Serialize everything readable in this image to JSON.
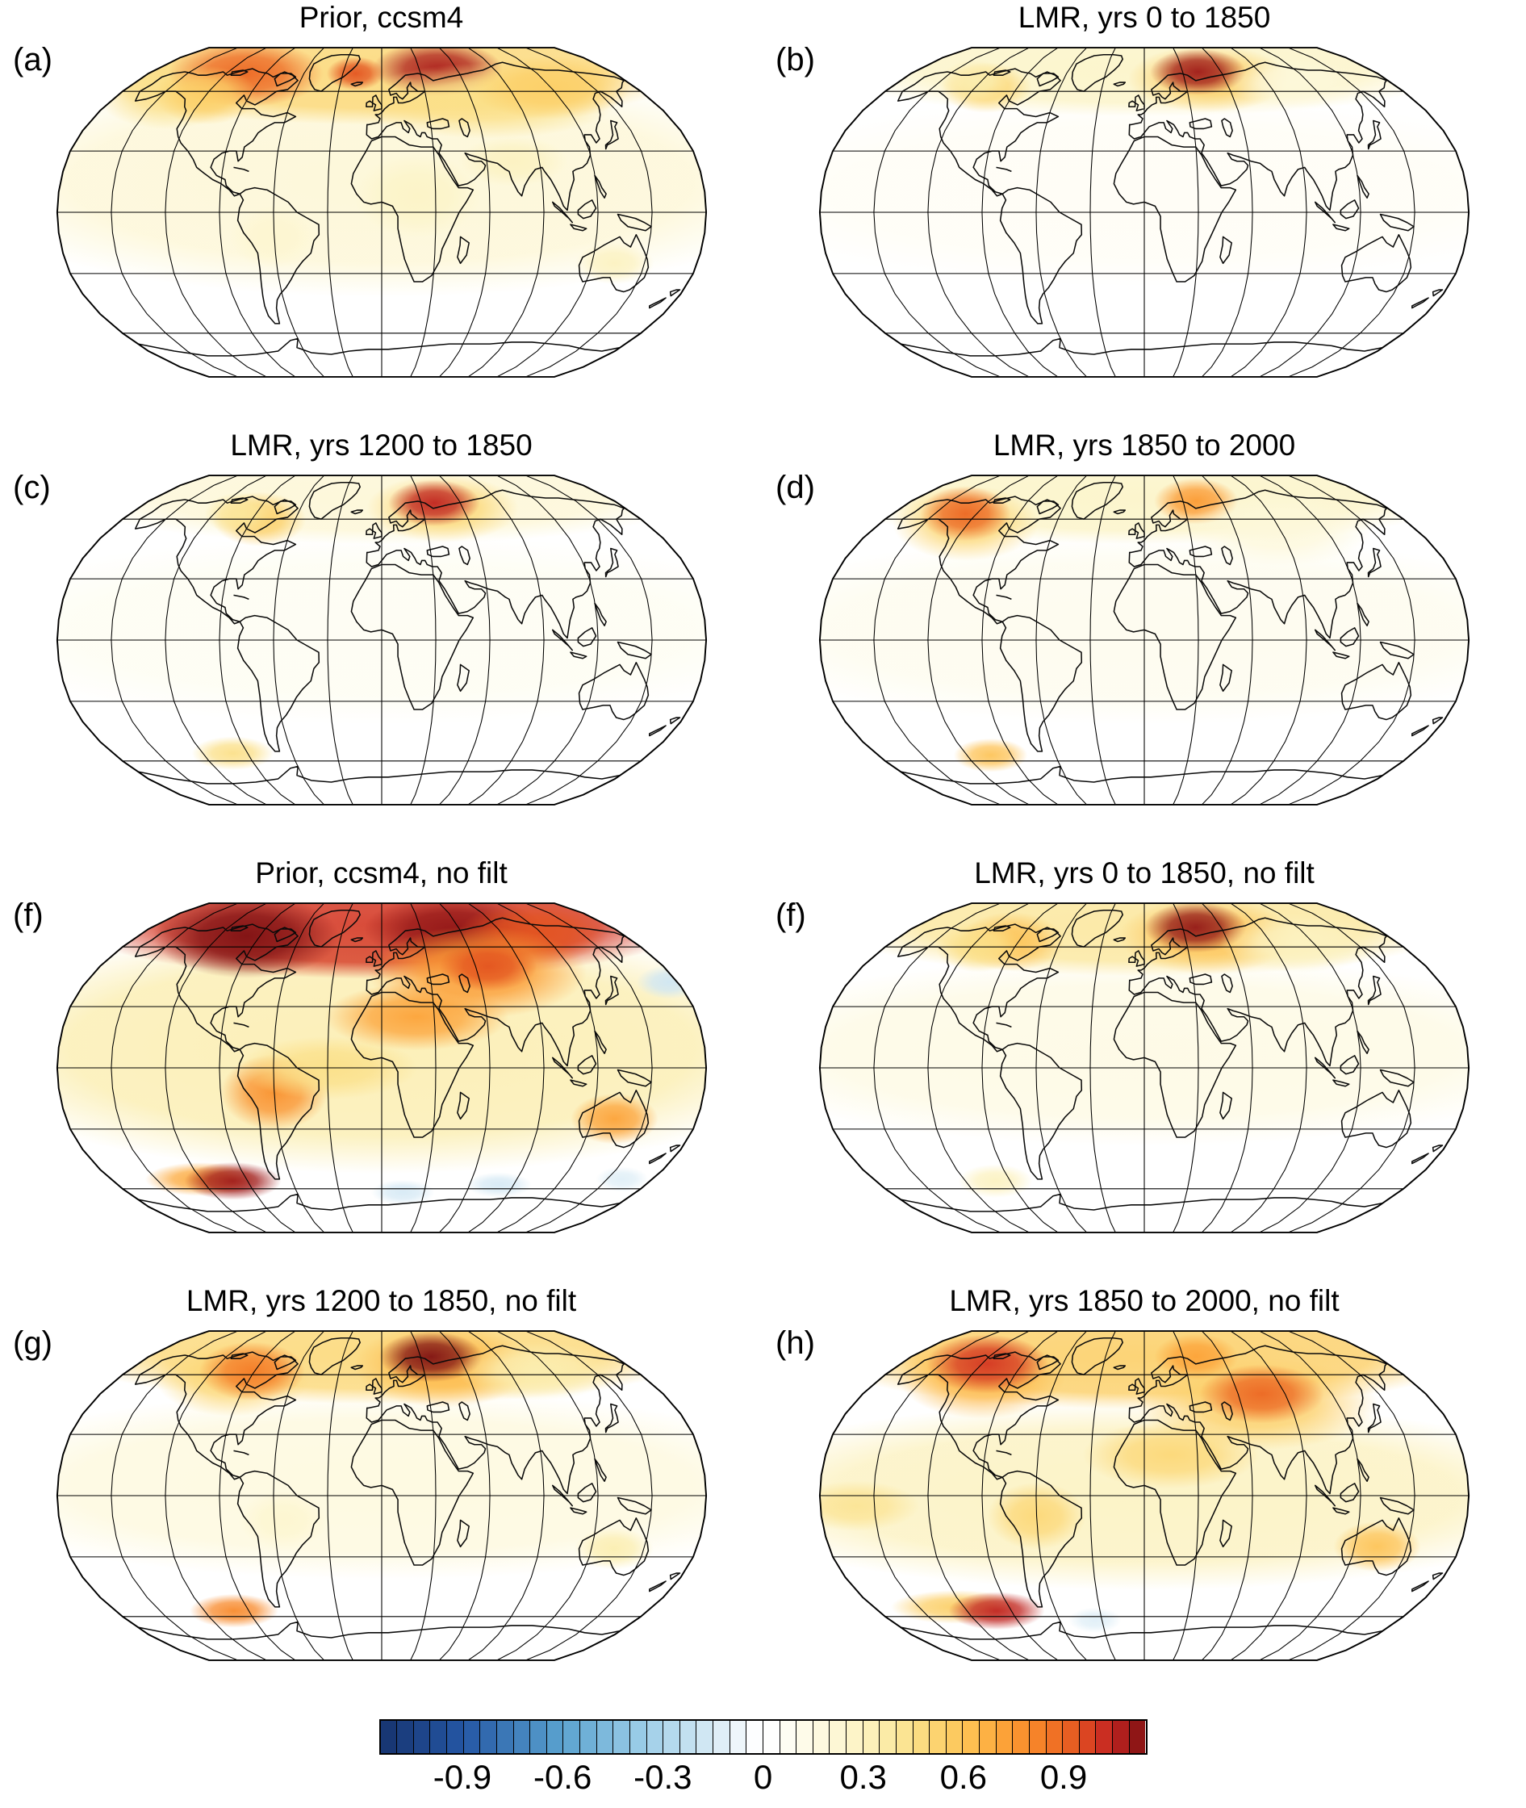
{
  "chart_data": {
    "type": "heatmap",
    "description": "Eight Robinson-projection global maps of a field plotted with a blue-white-red colormap; hotspots listed as [lon, lat, radius_lon_deg, radius_lat_deg, value].",
    "panels": [
      {
        "label": "(a)",
        "title": "Prior, ccsm4",
        "hotspots": [
          [
            0,
            15,
            200,
            55,
            0.22
          ],
          [
            0,
            72,
            200,
            26,
            0.5
          ],
          [
            -150,
            60,
            40,
            18,
            0.45
          ],
          [
            -105,
            70,
            48,
            16,
            0.9
          ],
          [
            -120,
            58,
            28,
            14,
            0.55
          ],
          [
            45,
            73,
            42,
            13,
            1.08
          ],
          [
            -20,
            70,
            18,
            8,
            0.95
          ],
          [
            70,
            55,
            70,
            18,
            0.45
          ],
          [
            120,
            62,
            45,
            15,
            0.55
          ],
          [
            -60,
            -12,
            20,
            15,
            0.25
          ],
          [
            20,
            8,
            28,
            20,
            0.28
          ],
          [
            133,
            -25,
            18,
            10,
            0.3
          ],
          [
            75,
            25,
            25,
            12,
            0.3
          ]
        ]
      },
      {
        "label": "(b)",
        "title": "LMR, yrs 0 to 1850",
        "hotspots": [
          [
            0,
            10,
            200,
            45,
            0.07
          ],
          [
            0,
            72,
            200,
            22,
            0.28
          ],
          [
            48,
            67,
            48,
            16,
            0.55
          ],
          [
            42,
            71,
            30,
            11,
            1.1
          ],
          [
            -112,
            62,
            26,
            12,
            0.5
          ],
          [
            -125,
            66,
            20,
            10,
            0.35
          ],
          [
            110,
            65,
            40,
            12,
            0.2
          ]
        ]
      },
      {
        "label": "(c)",
        "title": "LMR, yrs 1200 to 1850",
        "hotspots": [
          [
            0,
            5,
            200,
            45,
            0.08
          ],
          [
            0,
            72,
            200,
            22,
            0.22
          ],
          [
            45,
            66,
            45,
            16,
            0.5
          ],
          [
            40,
            69,
            28,
            11,
            1.05
          ],
          [
            -85,
            60,
            26,
            13,
            0.55
          ],
          [
            -102,
            63,
            20,
            10,
            0.4
          ],
          [
            -100,
            -56,
            22,
            8,
            0.45
          ]
        ]
      },
      {
        "label": "(d)",
        "title": "LMR, yrs 1850 to 2000",
        "hotspots": [
          [
            0,
            5,
            200,
            45,
            0.1
          ],
          [
            0,
            72,
            200,
            22,
            0.28
          ],
          [
            -122,
            58,
            40,
            18,
            0.5
          ],
          [
            -128,
            63,
            26,
            13,
            0.9
          ],
          [
            40,
            70,
            26,
            11,
            0.75
          ],
          [
            -104,
            -57,
            20,
            8,
            0.6
          ],
          [
            90,
            55,
            50,
            18,
            0.2
          ]
        ]
      },
      {
        "label": "(f)",
        "title": "Prior, ccsm4, no filt",
        "hotspots": [
          [
            0,
            10,
            200,
            60,
            0.35
          ],
          [
            0,
            73,
            200,
            26,
            1.0
          ],
          [
            -100,
            66,
            55,
            20,
            1.15
          ],
          [
            55,
            70,
            55,
            16,
            1.12
          ],
          [
            115,
            68,
            45,
            15,
            0.95
          ],
          [
            60,
            47,
            55,
            22,
            0.75
          ],
          [
            68,
            50,
            25,
            12,
            0.95
          ],
          [
            20,
            25,
            42,
            16,
            0.72
          ],
          [
            -60,
            -12,
            24,
            18,
            0.78
          ],
          [
            133,
            -25,
            20,
            12,
            0.72
          ],
          [
            -30,
            0,
            40,
            15,
            0.45
          ],
          [
            -120,
            -55,
            30,
            8,
            0.7
          ],
          [
            -100,
            -56,
            26,
            9,
            1.1
          ],
          [
            175,
            42,
            16,
            8,
            -0.18
          ],
          [
            80,
            -58,
            18,
            6,
            -0.15
          ],
          [
            15,
            -62,
            18,
            6,
            -0.15
          ],
          [
            160,
            -55,
            14,
            6,
            -0.12
          ]
        ]
      },
      {
        "label": "(f)",
        "title": "LMR, yrs 0 to 1850, no filt",
        "hotspots": [
          [
            0,
            8,
            200,
            45,
            0.15
          ],
          [
            0,
            72,
            200,
            24,
            0.4
          ],
          [
            46,
            66,
            52,
            18,
            0.6
          ],
          [
            40,
            71,
            32,
            12,
            1.12
          ],
          [
            -95,
            63,
            30,
            14,
            0.6
          ],
          [
            -115,
            60,
            24,
            12,
            0.45
          ],
          [
            -100,
            -56,
            20,
            8,
            0.3
          ],
          [
            110,
            62,
            45,
            14,
            0.3
          ]
        ]
      },
      {
        "label": "(g)",
        "title": "LMR, yrs 1200 to 1850, no filt",
        "hotspots": [
          [
            0,
            5,
            200,
            45,
            0.18
          ],
          [
            0,
            72,
            200,
            24,
            0.5
          ],
          [
            45,
            65,
            52,
            20,
            0.65
          ],
          [
            38,
            70,
            32,
            12,
            1.15
          ],
          [
            -102,
            58,
            42,
            18,
            0.5
          ],
          [
            -92,
            62,
            30,
            14,
            0.85
          ],
          [
            -100,
            -57,
            24,
            8,
            0.8
          ],
          [
            133,
            -26,
            18,
            10,
            0.35
          ],
          [
            110,
            62,
            45,
            14,
            0.35
          ],
          [
            -55,
            -12,
            20,
            14,
            0.25
          ]
        ]
      },
      {
        "label": "(h)",
        "title": "LMR, yrs 1850 to 2000, no filt",
        "hotspots": [
          [
            0,
            0,
            200,
            45,
            0.3
          ],
          [
            0,
            70,
            200,
            25,
            0.55
          ],
          [
            -112,
            59,
            46,
            20,
            0.65
          ],
          [
            -116,
            66,
            36,
            14,
            1.0
          ],
          [
            70,
            45,
            60,
            22,
            0.55
          ],
          [
            75,
            50,
            32,
            14,
            0.9
          ],
          [
            40,
            70,
            26,
            11,
            0.72
          ],
          [
            15,
            20,
            40,
            16,
            0.5
          ],
          [
            -60,
            -10,
            22,
            16,
            0.5
          ],
          [
            133,
            -25,
            20,
            12,
            0.6
          ],
          [
            -125,
            -55,
            35,
            8,
            0.55
          ],
          [
            -100,
            -57,
            26,
            9,
            1.05
          ],
          [
            -160,
            -5,
            28,
            12,
            0.42
          ],
          [
            -35,
            -62,
            15,
            6,
            -0.12
          ]
        ]
      }
    ],
    "colorbar": {
      "min": -1.15,
      "max": 1.15,
      "cells": 46,
      "tick_values": [
        -0.9,
        -0.6,
        -0.3,
        0,
        0.3,
        0.6,
        0.9
      ],
      "tick_labels": [
        "-0.9",
        "-0.6",
        "-0.3",
        "0",
        "0.3",
        "0.6",
        "0.9"
      ],
      "color_stops": [
        [
          -1.15,
          "#17336f"
        ],
        [
          -0.9,
          "#2457a4"
        ],
        [
          -0.6,
          "#5ba3d0"
        ],
        [
          -0.35,
          "#9fcfe8"
        ],
        [
          -0.15,
          "#d7eaf5"
        ],
        [
          -0.02,
          "#ffffff"
        ],
        [
          0.02,
          "#ffffff"
        ],
        [
          0.12,
          "#fefbea"
        ],
        [
          0.25,
          "#fdf6d0"
        ],
        [
          0.35,
          "#fbeeb1"
        ],
        [
          0.45,
          "#fbe089"
        ],
        [
          0.55,
          "#fccf67"
        ],
        [
          0.65,
          "#fdb94a"
        ],
        [
          0.75,
          "#fb9a32"
        ],
        [
          0.85,
          "#f47b26"
        ],
        [
          0.95,
          "#e35420"
        ],
        [
          1.0,
          "#d43723"
        ],
        [
          1.05,
          "#c02420"
        ],
        [
          1.15,
          "#7f1113"
        ]
      ]
    },
    "grid": {
      "parallels_deg": 30,
      "meridians_deg": 30,
      "projection": "robinson"
    }
  }
}
